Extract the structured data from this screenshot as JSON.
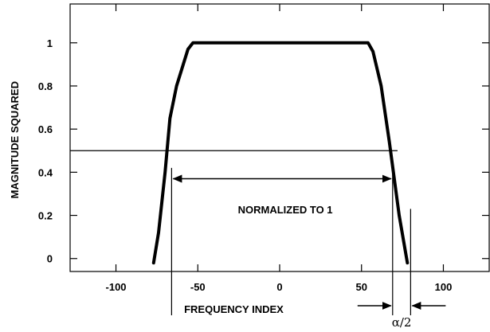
{
  "chart_data": {
    "type": "line",
    "title": "",
    "xlabel": "FREQUENCY INDEX",
    "ylabel": "MAGNITUDE SQUARED",
    "xlim": [
      -128,
      128
    ],
    "ylim": [
      -0.06,
      1.18
    ],
    "x_ticks": [
      -100,
      -50,
      0,
      50,
      100
    ],
    "y_ticks": [
      0,
      0.2,
      0.4,
      0.6,
      0.8,
      1
    ],
    "x_tick_labels": [
      "-100",
      "-50",
      "0",
      "50",
      "100"
    ],
    "y_tick_labels": [
      "0",
      "0.2",
      "0.4",
      "0.6",
      "0.8",
      "1"
    ],
    "grid": false,
    "series": [
      {
        "values": [
          [
            -77,
            -0.02
          ],
          [
            -74,
            0.12
          ],
          [
            -70,
            0.4
          ],
          [
            -67,
            0.65
          ],
          [
            -63,
            0.8
          ],
          [
            -56,
            0.97
          ],
          [
            -53,
            1.0
          ],
          [
            0,
            1.0
          ],
          [
            54,
            1.0
          ],
          [
            57,
            0.96
          ],
          [
            62,
            0.8
          ],
          [
            67,
            0.54
          ],
          [
            73,
            0.2
          ],
          [
            78,
            -0.02
          ]
        ]
      }
    ],
    "half_power_level": 0.5,
    "annotations": {
      "normalized_label": "NORMALIZED TO 1",
      "normalized_span": [
        -66,
        69
      ],
      "alpha_label": "α/2",
      "alpha_span": [
        69,
        80
      ]
    }
  }
}
